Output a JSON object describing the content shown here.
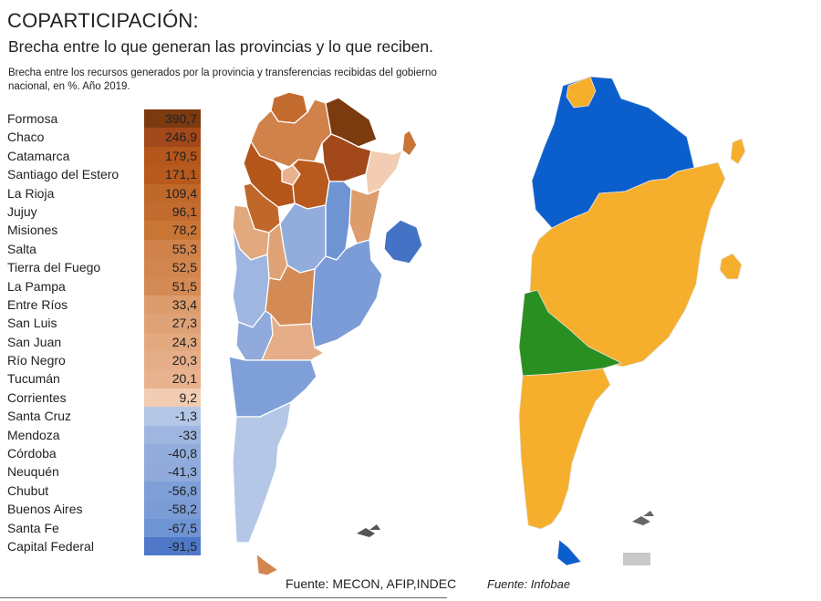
{
  "title": "COPARTICIPACIÓN:",
  "subtitle": "Brecha entre lo que generan las provincias y lo que reciben.",
  "note": "Brecha entre los recursos generados por la provincia y transferencias recibidas del gobierno nacional, en %. Año 2019.",
  "source_left": "Fuente: MECON, AFIP,INDEC",
  "source_right": "Fuente: Infobae",
  "colors": {
    "brown_dark": "#7c3a0f",
    "orange_dark": "#b5561a",
    "orange": "#cd7a3f",
    "peach": "#e0a27a",
    "light_peach": "#f2cdb3",
    "light_blue": "#b4c7e7",
    "blue_mid": "#8eaadb",
    "blue": "#6e93d4",
    "blue_dark": "#4472c4",
    "map2_blue": "#0b5fcc",
    "map2_orange": "#f6ae2d",
    "map2_green": "#2a8f21"
  },
  "table": [
    {
      "province": "Formosa",
      "value": "390,7",
      "color": "#7c3a0f"
    },
    {
      "province": "Chaco",
      "value": "246,9",
      "color": "#a3481a"
    },
    {
      "province": "Catamarca",
      "value": "179,5",
      "color": "#b5561a"
    },
    {
      "province": "Santiago del Estero",
      "value": "171,1",
      "color": "#b85a1e"
    },
    {
      "province": "La Rioja",
      "value": "109,4",
      "color": "#c0672a"
    },
    {
      "province": "Jujuy",
      "value": "96,1",
      "color": "#c46c30"
    },
    {
      "province": "Misiones",
      "value": "78,2",
      "color": "#c97536"
    },
    {
      "province": "Salta",
      "value": "55,3",
      "color": "#d0824a"
    },
    {
      "province": "Tierra del Fuego",
      "value": "52,5",
      "color": "#d2864e"
    },
    {
      "province": "La Pampa",
      "value": "51,5",
      "color": "#d48a54"
    },
    {
      "province": "Entre Ríos",
      "value": "33,4",
      "color": "#dc9c6c"
    },
    {
      "province": "San Luis",
      "value": "27,3",
      "color": "#dfa276"
    },
    {
      "province": "San Juan",
      "value": "24,3",
      "color": "#e2a87e"
    },
    {
      "province": "Río Negro",
      "value": "20,3",
      "color": "#e5ae88"
    },
    {
      "province": "Tucumán",
      "value": "20,1",
      "color": "#e7b28d"
    },
    {
      "province": "Corrientes",
      "value": "9,2",
      "color": "#f2cdb3"
    },
    {
      "province": "Santa Cruz",
      "value": "-1,3",
      "color": "#b4c7e7"
    },
    {
      "province": "Mendoza",
      "value": "-33",
      "color": "#9eb6e0"
    },
    {
      "province": "Córdoba",
      "value": "-40,8",
      "color": "#92addc"
    },
    {
      "province": "Neuquén",
      "value": "-41,3",
      "color": "#8faadb"
    },
    {
      "province": "Chubut",
      "value": "-56,8",
      "color": "#7e9fd8"
    },
    {
      "province": "Buenos Aires",
      "value": "-58,2",
      "color": "#7b9cd7"
    },
    {
      "province": "Santa Fe",
      "value": "-67,5",
      "color": "#6f94d3"
    },
    {
      "province": "Capital Federal",
      "value": "-91,5",
      "color": "#4f79c8"
    }
  ]
}
